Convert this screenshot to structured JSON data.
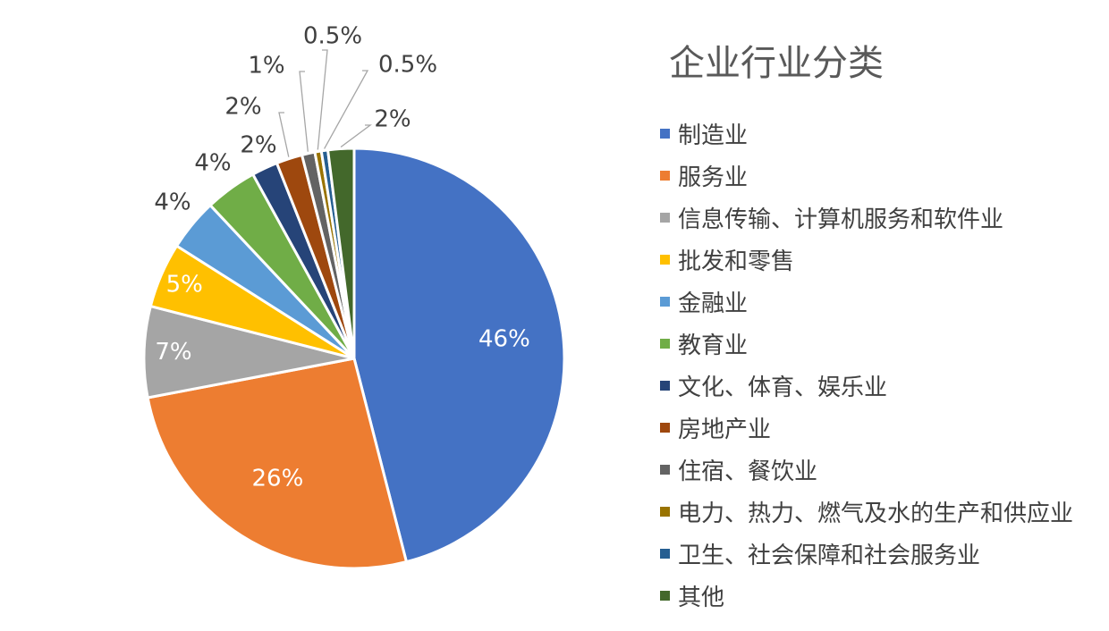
{
  "chart_data": {
    "type": "pie",
    "title": "企业行业分类",
    "legend_position": "right",
    "slices": [
      {
        "name": "制造业",
        "value": 46,
        "label": "46%",
        "color": "#4472c4"
      },
      {
        "name": "服务业",
        "value": 26,
        "label": "26%",
        "color": "#ed7d31"
      },
      {
        "name": "信息传输、计算机服务和软件业",
        "value": 7,
        "label": "7%",
        "color": "#a5a5a5"
      },
      {
        "name": "批发和零售",
        "value": 5,
        "label": "5%",
        "color": "#ffc000"
      },
      {
        "name": "金融业",
        "value": 4,
        "label": "4%",
        "color": "#5b9bd5"
      },
      {
        "name": "教育业",
        "value": 4,
        "label": "4%",
        "color": "#70ad47"
      },
      {
        "name": "文化、体育、娱乐业",
        "value": 2,
        "label": "2%",
        "color": "#264478"
      },
      {
        "name": "房地产业",
        "value": 2,
        "label": "2%",
        "color": "#9e480e"
      },
      {
        "name": "住宿、餐饮业",
        "value": 1,
        "label": "1%",
        "color": "#636363"
      },
      {
        "name": "电力、热力、燃气及水的生产和供应业",
        "value": 0.5,
        "label": "0.5%",
        "color": "#997300"
      },
      {
        "name": "卫生、社会保障和社会服务业",
        "value": 0.5,
        "label": "0.5%",
        "color": "#255e91"
      },
      {
        "name": "其他",
        "value": 2,
        "label": "2%",
        "color": "#43682b"
      }
    ]
  }
}
